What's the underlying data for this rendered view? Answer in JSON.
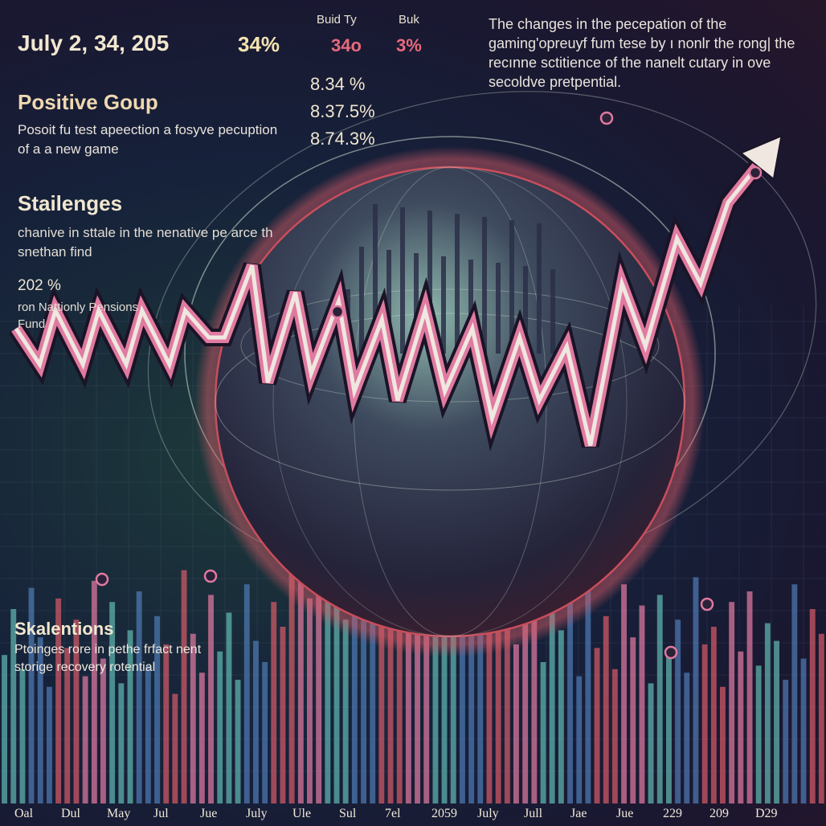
{
  "header": {
    "date": "July 2, 34, 205",
    "main_pct": "34%",
    "col_a_label": "Buid Ty",
    "col_b_label": "Buk",
    "col_a_value": "34o",
    "col_b_value": "3%",
    "note": "The changes in the pecepation of the gaming'opreuyf fum tese by ı nonlr the rong| the recınne sctitience of the nanelt cutary in ove secoldve pretpential."
  },
  "positive": {
    "title": "Positive Goup",
    "desc": "Posoit fu test apeection a fosyve pecuption of a a new game",
    "stats": [
      "8.34 %",
      "8.37.5%",
      "8.74.3%"
    ]
  },
  "challenges": {
    "title": "Stailenges",
    "desc": "chanive in sttale in the nenative pe arce th snethan find",
    "pct": "202 %",
    "fund": "ron Nattionly Pensions Fund"
  },
  "solutions": {
    "title": "Skalentions",
    "desc": "Ptoinges rore in pethe frfact nent storige recovery rotential"
  },
  "colors": {
    "teal": "#5fb7b0",
    "blue": "#4d7ab3",
    "red": "#d45a66",
    "pink": "#e07aa0",
    "cream": "#efe7e0"
  },
  "chart_data": {
    "type": "bar",
    "title": "",
    "xlabel": "",
    "ylabel": "",
    "x_tick_labels": [
      "Oal",
      "Dul",
      "May",
      "Jul",
      "Jue",
      "July",
      "Ule",
      "Sul",
      "7el",
      "2059",
      "July",
      "Jull",
      "Jae",
      "Jue",
      "229",
      "209",
      "D29"
    ],
    "bar_values": [
      42,
      55,
      38,
      61,
      47,
      33,
      58,
      44,
      52,
      36,
      63,
      41,
      57,
      34,
      49,
      60,
      39,
      53,
      45,
      31,
      66,
      48,
      37,
      59,
      43,
      54,
      35,
      62,
      46,
      40,
      57,
      50,
      72,
      85,
      58,
      91,
      64,
      78,
      52,
      88,
      69,
      95,
      60,
      82,
      73,
      55,
      90,
      66,
      79,
      48,
      86,
      62,
      74,
      57,
      68,
      51,
      63,
      45,
      71,
      54,
      40,
      66,
      49,
      58,
      36,
      61,
      44,
      53,
      38,
      62,
      47,
      56,
      34,
      59,
      42,
      52,
      37,
      64,
      45,
      50,
      33,
      57,
      43,
      60,
      39,
      51,
      46,
      35,
      62,
      41,
      55,
      48
    ],
    "line": {
      "x": [
        0,
        30,
        50,
        85,
        105,
        140,
        160,
        195,
        215,
        245,
        265,
        300,
        320,
        355,
        375,
        410,
        430,
        465,
        485,
        520,
        545,
        580,
        605,
        640,
        665,
        700,
        730,
        770,
        800,
        840,
        870,
        905,
        960
      ],
      "y": [
        52,
        44,
        56,
        44,
        56,
        44,
        56,
        44,
        56,
        50,
        50,
        66,
        40,
        60,
        42,
        58,
        38,
        54,
        36,
        56,
        38,
        52,
        32,
        50,
        36,
        48,
        26,
        62,
        48,
        72,
        62,
        80,
        92
      ]
    },
    "ylim": [
      0,
      100
    ],
    "grid": true
  }
}
